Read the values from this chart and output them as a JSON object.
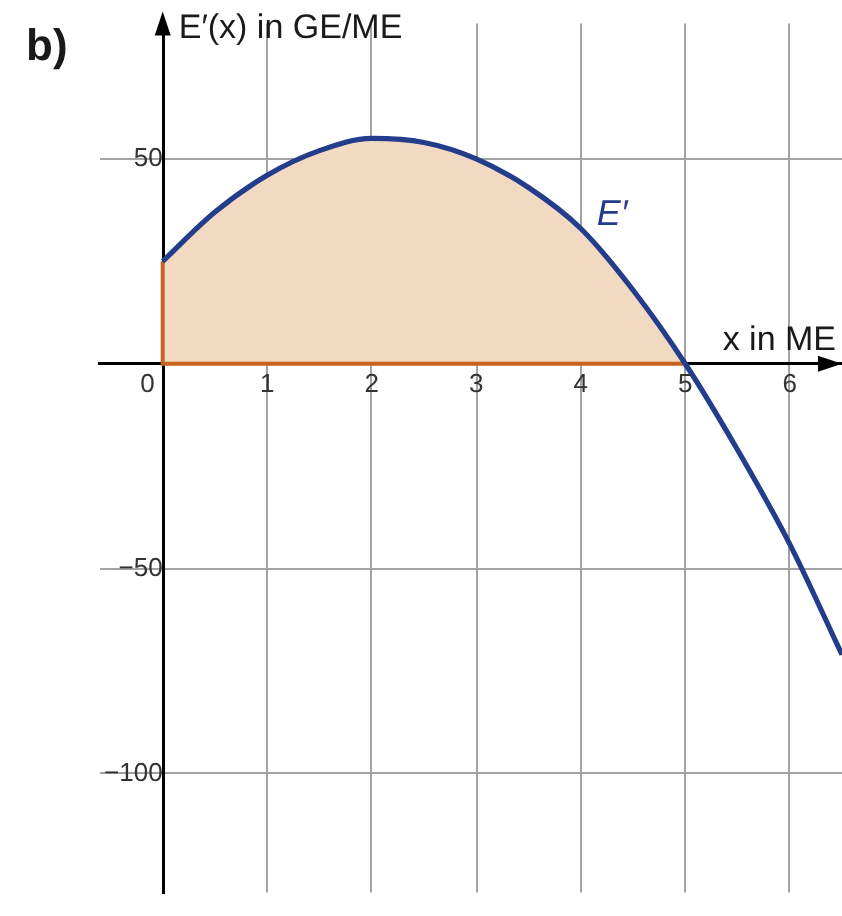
{
  "chart_data": {
    "type": "line",
    "title": "b)",
    "xlabel": "x in ME",
    "ylabel": "E′(x) in GE/ME",
    "xlim": [
      -0.6,
      6.5
    ],
    "ylim": [
      -129,
      83
    ],
    "xticks": [
      0,
      1,
      2,
      3,
      4,
      5,
      6
    ],
    "yticks": [
      -100,
      -50,
      50
    ],
    "grid": true,
    "series": [
      {
        "type": "area",
        "color": "#f2d9c2",
        "x": [
          0,
          0.5,
          1,
          1.5,
          2,
          2.5,
          3,
          3.5,
          4,
          4.5,
          5
        ],
        "values": [
          25,
          37,
          46,
          52,
          55,
          54,
          50,
          43,
          33,
          18,
          0
        ]
      },
      {
        "name": "E′",
        "color": "#233c8c",
        "x": [
          0,
          0.5,
          1,
          1.5,
          2,
          2.5,
          3,
          3.5,
          4,
          4.5,
          5,
          5.5,
          6,
          6.5
        ],
        "values": [
          25,
          37,
          46,
          52,
          55,
          54,
          50,
          43,
          33,
          18,
          0,
          -21,
          -44,
          -71
        ]
      }
    ]
  }
}
